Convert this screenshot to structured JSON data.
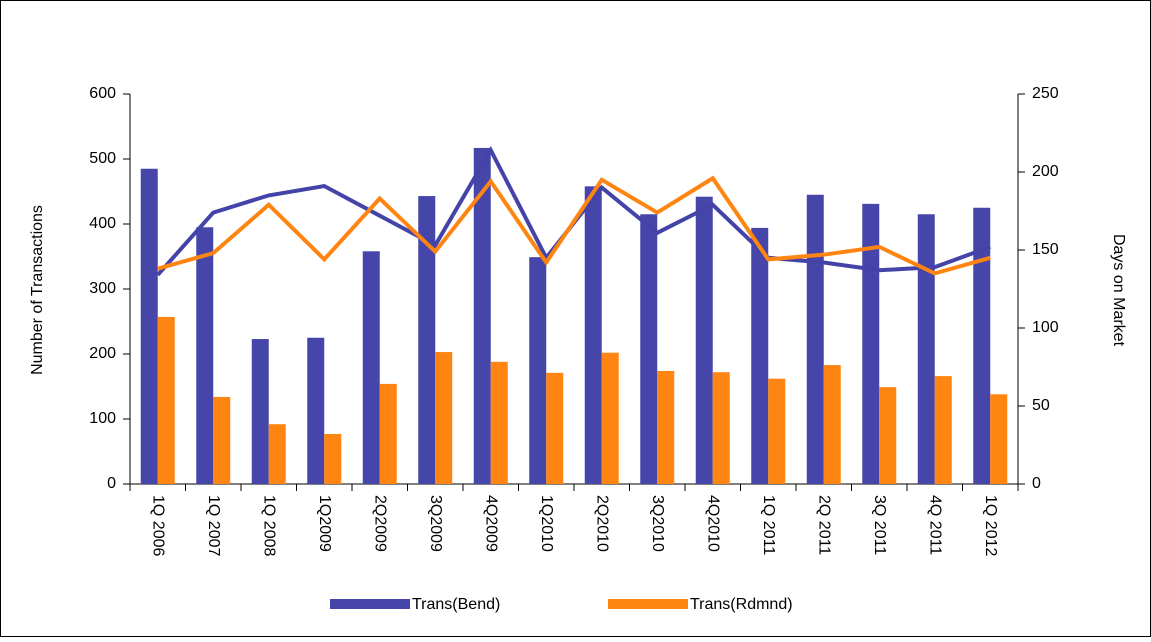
{
  "chart_data": {
    "type": "bar-line",
    "y_label": "Number of Transactions",
    "y2_label": "Days on Market",
    "categories": [
      "1Q 2006",
      "1Q 2007",
      "1Q 2008",
      "1Q2009",
      "2Q2009",
      "3Q2009",
      "4Q2009",
      "1Q2010",
      "2Q2010",
      "3Q2010",
      "4Q2010",
      "1Q 2011",
      "2Q 2011",
      "3Q 2011",
      "4Q 2011",
      "1Q 2012"
    ],
    "series": [
      {
        "name": "Trans(Bend)",
        "type": "bar",
        "color": "#4646aa",
        "values": [
          485,
          395,
          223,
          225,
          358,
          443,
          517,
          349,
          458,
          415,
          442,
          394,
          445,
          431,
          415,
          425
        ]
      },
      {
        "name": "Trans(Rdmnd)",
        "type": "bar",
        "color": "#ff8512",
        "values": [
          257,
          134,
          92,
          77,
          154,
          203,
          188,
          171,
          202,
          174,
          172,
          162,
          183,
          149,
          166,
          138
        ]
      },
      {
        "type": "line",
        "axis": "y2",
        "color": "#4343a8",
        "values": [
          134,
          174,
          185,
          191,
          172,
          153,
          214,
          145,
          190,
          161,
          179,
          145,
          142,
          137,
          139,
          152
        ]
      },
      {
        "type": "line",
        "axis": "y2",
        "color": "#ff8512",
        "values": [
          138,
          148,
          179,
          144,
          183,
          149,
          194,
          142,
          195,
          174,
          196,
          144,
          147,
          152,
          135,
          145
        ]
      }
    ],
    "ylim": [
      0,
      600
    ],
    "yticks": [
      0,
      100,
      200,
      300,
      400,
      500,
      600
    ],
    "y2lim": [
      0,
      250
    ],
    "y2ticks": [
      0,
      50,
      100,
      150,
      200,
      250
    ],
    "grid": false,
    "legend": "bottom"
  }
}
